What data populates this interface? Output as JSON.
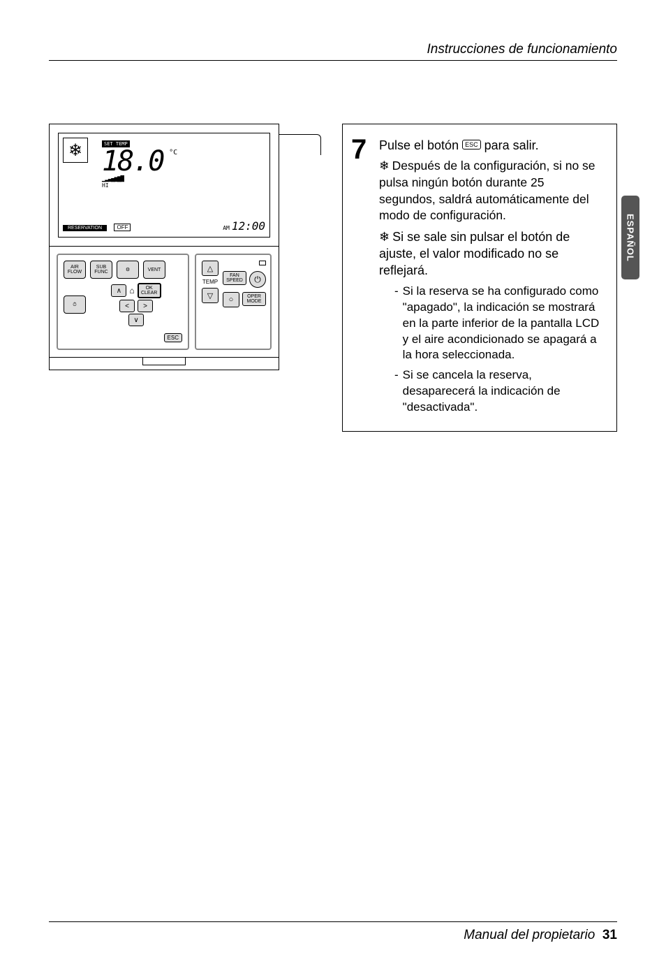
{
  "header": {
    "title": "Instrucciones de funcionamiento"
  },
  "lang_tab": "ESPAÑOL",
  "lcd": {
    "set_temp_badge": "SET TEMP",
    "temp_value": "18.0",
    "temp_unit": "°C",
    "fan_levels": "▁▂▃▄▅▆▇",
    "hi": "HI",
    "reservation_badge": "RESERVATION",
    "off_chip": "OFF",
    "ampm": "AM",
    "clock": "12:00"
  },
  "buttons": {
    "air_flow": "AIR\nFLOW",
    "sub_func": "SUB\nFUNC",
    "settings": "⚙",
    "vent": "VENT",
    "timer": "⏱",
    "up": "∧",
    "home": "⌂",
    "ok": "OK\nCLEAR",
    "left": "<",
    "right": ">",
    "down": "∨",
    "esc": "ESC",
    "temp_up": "△",
    "temp_label": "TEMP",
    "temp_down": "▽",
    "fan_speed": "FAN\nSPEED",
    "power": "⏻",
    "circle": "○",
    "oper_mode": "OPER\nMODE"
  },
  "step": {
    "num": "7",
    "line1_a": "Pulse el botón ",
    "esc_chip": "ESC",
    "line1_b": " para salir.",
    "bullet1": "Después de la configuración, si no se pulsa ningún botón durante 25 segundos, saldrá automáticamente del modo de configuración.",
    "bullet2": "Si se sale sin pulsar el botón de ajuste, el valor modificado no se reflejará.",
    "dash1": "Si la reserva se ha configurado como \"apagado\", la indicación se mostrará en la parte inferior de la pantalla LCD y el aire acondicionado se apagará a la hora seleccionada.",
    "dash2": "Si se cancela la reserva, desaparecerá la indicación de \"desactivada\"."
  },
  "footer": {
    "text": "Manual del propietario",
    "page": "31"
  }
}
